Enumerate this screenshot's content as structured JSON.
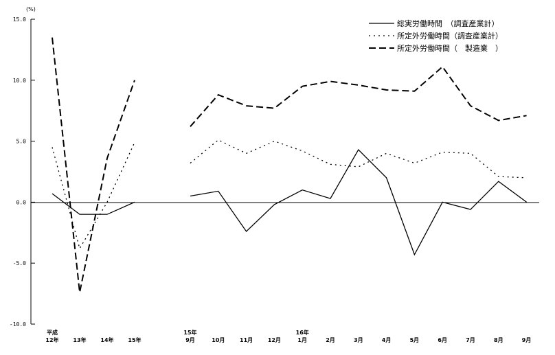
{
  "chart_data": {
    "type": "line",
    "unit_label": "(%)",
    "ylim": [
      -10.0,
      15.0
    ],
    "yticks": [
      "15.0",
      "10.0",
      "5.0",
      "0.0",
      "-5.0",
      "-10.0"
    ],
    "grid": false,
    "legend_position": "top-right",
    "annual": {
      "categories": [
        {
          "line1": "平成",
          "line2": "12年"
        },
        {
          "line1": "",
          "line2": "13年"
        },
        {
          "line1": "",
          "line2": "14年"
        },
        {
          "line1": "",
          "line2": "15年"
        }
      ]
    },
    "monthly": {
      "categories": [
        {
          "line1": "15年",
          "line2": "9月"
        },
        {
          "line1": "",
          "line2": "10月"
        },
        {
          "line1": "",
          "line2": "11月"
        },
        {
          "line1": "",
          "line2": "12月"
        },
        {
          "line1": "16年",
          "line2": "1月"
        },
        {
          "line1": "",
          "line2": "2月"
        },
        {
          "line1": "",
          "line2": "3月"
        },
        {
          "line1": "",
          "line2": "4月"
        },
        {
          "line1": "",
          "line2": "5月"
        },
        {
          "line1": "",
          "line2": "6月"
        },
        {
          "line1": "",
          "line2": "7月"
        },
        {
          "line1": "",
          "line2": "8月"
        },
        {
          "line1": "",
          "line2": "9月"
        }
      ]
    },
    "series": [
      {
        "name": "総実労働時間　（調査産業計）",
        "style": "solid",
        "annual_x": [
          0,
          1,
          2,
          3
        ],
        "annual_values": [
          0.7,
          -1.0,
          -1.0,
          0.0
        ],
        "monthly_values": [
          0.5,
          0.9,
          -2.4,
          -0.2,
          1.0,
          0.3,
          4.3,
          2.0,
          -4.3,
          0.0,
          -0.6,
          1.7,
          0.0
        ]
      },
      {
        "name": "所定外労働時間（調査産業計）",
        "style": "dotted",
        "annual_x": [
          0,
          1,
          2,
          3
        ],
        "annual_values": [
          4.5,
          -3.8,
          0.0,
          4.9
        ],
        "monthly_values": [
          3.2,
          5.1,
          4.0,
          5.0,
          4.2,
          3.1,
          2.9,
          4.0,
          3.2,
          4.1,
          4.0,
          2.1,
          2.0
        ]
      },
      {
        "name": "所定外労働時間（　製造業　）",
        "style": "dashed",
        "annual_x": [
          0,
          1,
          2,
          3
        ],
        "annual_values": [
          13.5,
          -7.4,
          3.6,
          10.0
        ],
        "monthly_values": [
          6.2,
          8.8,
          7.9,
          7.7,
          9.5,
          9.9,
          9.6,
          9.2,
          9.1,
          11.1,
          7.9,
          6.7,
          7.1
        ]
      }
    ]
  }
}
